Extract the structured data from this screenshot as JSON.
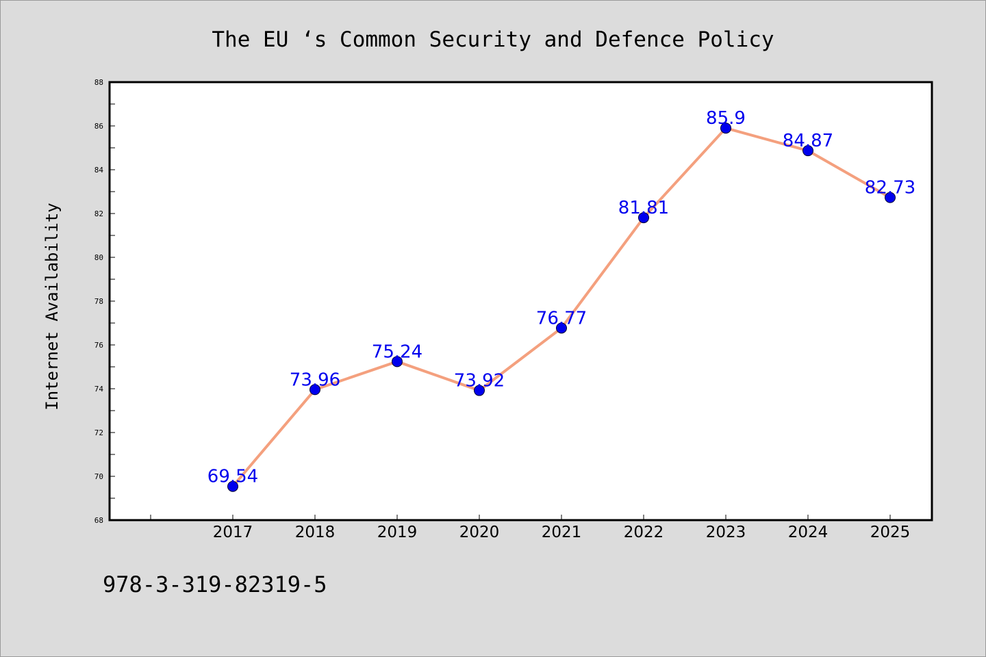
{
  "chart_data": {
    "type": "line",
    "title": "The EU ‘s Common Security and Defence Policy",
    "xlabel": "",
    "ylabel": "Internet Availability",
    "categories": [
      "2017",
      "2018",
      "2019",
      "2020",
      "2021",
      "2022",
      "2023",
      "2024",
      "2025"
    ],
    "series": [
      {
        "values": [
          69.54,
          73.96,
          75.24,
          73.92,
          76.77,
          81.81,
          85.9,
          84.87,
          82.73
        ],
        "labels": [
          "69.54",
          "73.96",
          "75.24",
          "73.92",
          "76.77",
          "81.81",
          "85.9",
          "84.87",
          "82.73"
        ],
        "line_color": "#f4a07e",
        "marker_color": "#0000ee",
        "label_color": "#0000ee"
      }
    ],
    "ylim": [
      68,
      88
    ],
    "yticks": [
      "68",
      "70",
      "72",
      "74",
      "76",
      "78",
      "80",
      "82",
      "84",
      "86",
      "88"
    ],
    "grid": false,
    "legend": "none"
  },
  "footer": {
    "isbn": "978-3-319-82319-5"
  }
}
